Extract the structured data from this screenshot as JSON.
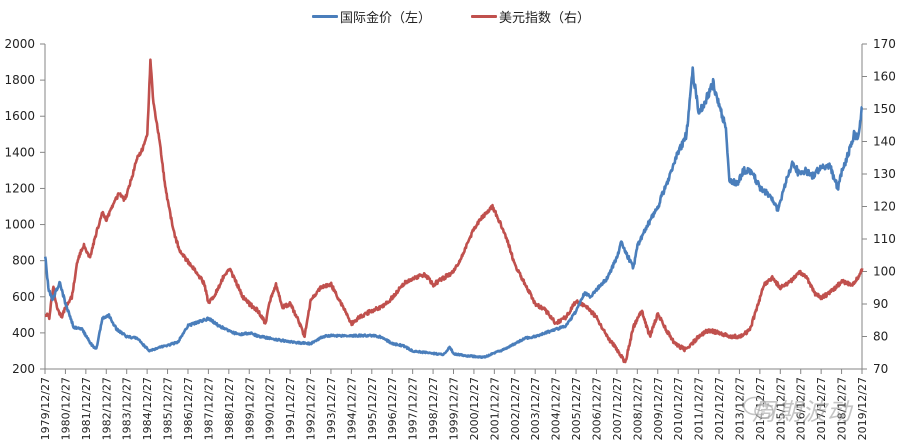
{
  "legend": {
    "gold_label": "国际金价（左）",
    "dxy_label": "美元指数（右）"
  },
  "colors": {
    "gold": "#4a7ebb",
    "dxy": "#c0504d",
    "axis": "#868686",
    "text": "#222222"
  },
  "watermark": {
    "text": "周期波动"
  },
  "chart_data": {
    "type": "line",
    "title": "",
    "xlabel": "",
    "ylabel_left": "国际金价",
    "ylabel_right": "美元指数",
    "legend_position": "top",
    "grid": false,
    "x_tick_labels": [
      "1979/12/27",
      "1980/12/27",
      "1981/12/27",
      "1982/12/27",
      "1983/12/27",
      "1984/12/27",
      "1985/12/27",
      "1986/12/27",
      "1987/12/27",
      "1988/12/27",
      "1989/12/27",
      "1990/12/27",
      "1991/12/27",
      "1992/12/27",
      "1993/12/27",
      "1994/12/27",
      "1995/12/27",
      "1996/12/27",
      "1997/12/27",
      "1998/12/27",
      "1999/12/27",
      "2000/12/27",
      "2001/12/27",
      "2002/12/27",
      "2003/12/27",
      "2004/12/27",
      "2005/12/27",
      "2006/12/27",
      "2007/12/27",
      "2008/12/27",
      "2009/12/27",
      "2010/12/27",
      "2011/12/27",
      "2012/12/27",
      "2013/12/27",
      "2014/12/27",
      "2015/12/27",
      "2016/12/27",
      "2017/12/27",
      "2018/12/27",
      "2019/12/27"
    ],
    "y_left": {
      "min": 200,
      "max": 2000,
      "ticks": [
        200,
        400,
        600,
        800,
        1000,
        1200,
        1400,
        1600,
        1800,
        2000
      ]
    },
    "y_right": {
      "min": 70,
      "max": 170,
      "ticks": [
        70,
        80,
        90,
        100,
        110,
        120,
        130,
        140,
        150,
        160,
        170
      ]
    },
    "series": [
      {
        "name": "国际金价（左）",
        "axis": "left",
        "x": [
          1980.0,
          1980.15,
          1980.35,
          1980.7,
          1981.0,
          1981.4,
          1981.8,
          1982.3,
          1982.5,
          1982.8,
          1983.1,
          1983.5,
          1984.0,
          1984.5,
          1985.1,
          1985.6,
          1986.0,
          1986.5,
          1987.0,
          1987.5,
          1988.0,
          1988.5,
          1989.0,
          1989.5,
          1990.0,
          1990.5,
          1991.0,
          1991.5,
          1992.0,
          1992.5,
          1993.0,
          1993.6,
          1994.0,
          1995.0,
          1996.0,
          1996.5,
          1997.0,
          1997.5,
          1998.0,
          1998.7,
          1999.5,
          1999.8,
          2000.0,
          2000.5,
          2001.0,
          2001.5,
          2002.0,
          2002.5,
          2003.0,
          2003.5,
          2004.0,
          2004.5,
          2005.0,
          2005.5,
          2006.0,
          2006.4,
          2006.7,
          2007.0,
          2007.5,
          2008.0,
          2008.2,
          2008.8,
          2009.0,
          2009.5,
          2010.0,
          2010.5,
          2011.0,
          2011.4,
          2011.7,
          2011.9,
          2012.0,
          2012.3,
          2012.7,
          2013.0,
          2013.3,
          2013.5,
          2013.9,
          2014.2,
          2014.6,
          2015.0,
          2015.5,
          2015.9,
          2016.3,
          2016.6,
          2016.9,
          2017.2,
          2017.6,
          2018.0,
          2018.4,
          2018.8,
          2019.0,
          2019.4,
          2019.6,
          2019.8,
          2020.0
        ],
        "values": [
          830,
          650,
          580,
          680,
          560,
          430,
          420,
          330,
          310,
          480,
          500,
          420,
          380,
          370,
          300,
          320,
          330,
          350,
          440,
          460,
          480,
          440,
          410,
          390,
          400,
          380,
          370,
          360,
          350,
          345,
          340,
          380,
          385,
          385,
          385,
          375,
          340,
          330,
          300,
          290,
          280,
          320,
          285,
          275,
          270,
          265,
          290,
          310,
          340,
          370,
          380,
          400,
          420,
          440,
          520,
          620,
          600,
          640,
          700,
          820,
          900,
          760,
          880,
          1000,
          1100,
          1250,
          1400,
          1500,
          1850,
          1700,
          1620,
          1680,
          1780,
          1650,
          1550,
          1250,
          1230,
          1300,
          1290,
          1200,
          1160,
          1080,
          1250,
          1350,
          1280,
          1300,
          1270,
          1320,
          1330,
          1200,
          1290,
          1420,
          1500,
          1480,
          1650
        ]
      },
      {
        "name": "美元指数（右）",
        "axis": "right",
        "x": [
          1980.0,
          1980.2,
          1980.4,
          1980.6,
          1980.8,
          1981.0,
          1981.3,
          1981.6,
          1981.9,
          1982.2,
          1982.5,
          1982.8,
          1983.0,
          1983.3,
          1983.6,
          1983.9,
          1984.2,
          1984.5,
          1984.8,
          1985.0,
          1985.15,
          1985.3,
          1985.6,
          1985.9,
          1986.3,
          1986.6,
          1987.0,
          1987.4,
          1987.8,
          1988.0,
          1988.4,
          1988.7,
          1989.0,
          1989.4,
          1989.7,
          1990.0,
          1990.4,
          1990.8,
          1991.0,
          1991.3,
          1991.6,
          1992.0,
          1992.4,
          1992.7,
          1993.0,
          1993.5,
          1994.0,
          1994.5,
          1995.0,
          1995.4,
          1996.0,
          1996.5,
          1997.0,
          1997.5,
          1998.0,
          1998.6,
          1999.0,
          1999.5,
          2000.0,
          2000.5,
          2000.9,
          2001.3,
          2001.6,
          2001.9,
          2002.2,
          2002.6,
          2003.0,
          2003.5,
          2004.0,
          2004.5,
          2005.0,
          2005.5,
          2006.0,
          2006.5,
          2007.0,
          2007.5,
          2008.0,
          2008.4,
          2008.8,
          2009.2,
          2009.6,
          2010.0,
          2010.4,
          2010.8,
          2011.3,
          2011.7,
          2012.0,
          2012.5,
          2013.0,
          2013.5,
          2014.0,
          2014.5,
          2014.8,
          2015.2,
          2015.6,
          2016.0,
          2016.5,
          2016.9,
          2017.3,
          2017.7,
          2018.0,
          2018.3,
          2018.7,
          2019.0,
          2019.5,
          2019.9,
          2020.0
        ],
        "values": [
          87,
          86,
          95,
          88,
          86,
          89,
          92,
          104,
          108,
          104,
          112,
          118,
          116,
          120,
          124,
          122,
          128,
          135,
          138,
          142,
          165,
          152,
          140,
          125,
          112,
          106,
          103,
          100,
          96,
          90,
          94,
          98,
          101,
          96,
          92,
          90,
          88,
          84,
          91,
          96,
          89,
          90,
          85,
          80,
          91,
          95,
          96,
          90,
          84,
          86,
          88,
          89,
          92,
          96,
          98,
          99,
          96,
          98,
          100,
          106,
          112,
          116,
          118,
          120,
          116,
          110,
          102,
          96,
          90,
          88,
          84,
          86,
          91,
          89,
          86,
          80,
          76,
          72,
          83,
          88,
          80,
          87,
          82,
          78,
          76,
          78,
          80,
          82,
          81,
          80,
          80,
          82,
          88,
          96,
          98,
          95,
          97,
          100,
          98,
          93,
          92,
          93,
          95,
          97,
          96,
          99,
          101
        ]
      }
    ]
  }
}
